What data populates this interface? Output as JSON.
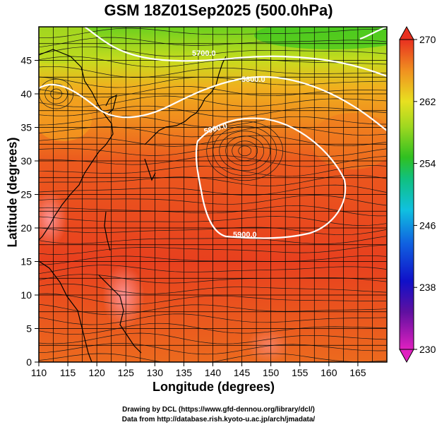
{
  "title": "GSM 18Z01Sep2025 (500.0hPa)",
  "axes": {
    "xlabel": "Longitude (degrees)",
    "ylabel": "Latitude  (degrees)",
    "x_ticks": [
      "110",
      "115",
      "120",
      "125",
      "130",
      "135",
      "140",
      "145",
      "150",
      "155",
      "160",
      "165"
    ],
    "y_ticks": [
      "0",
      "5",
      "10",
      "15",
      "20",
      "25",
      "30",
      "35",
      "40",
      "45"
    ],
    "x_range": [
      110,
      170
    ],
    "y_range": [
      0,
      50
    ]
  },
  "colorbar": {
    "min": 230,
    "max": 270,
    "labels": [
      "270",
      "262",
      "254",
      "246",
      "238",
      "230"
    ]
  },
  "contours": [
    {
      "label": "5700.0"
    },
    {
      "label": "5800.0"
    },
    {
      "label": "5900.0"
    },
    {
      "label": "5900.0"
    }
  ],
  "credits": {
    "line1": "Drawing by DCL (https://www.gfd-dennou.org/library/dcl/)",
    "line2": "Data from http://database.rish.kyoto-u.ac.jp/arch/jmadata/"
  },
  "colors": {
    "warm": "#e8401e",
    "orange": "#f07a1e",
    "yellow": "#e8e020",
    "green": "#3cc81e",
    "contour": "#ffffff"
  }
}
